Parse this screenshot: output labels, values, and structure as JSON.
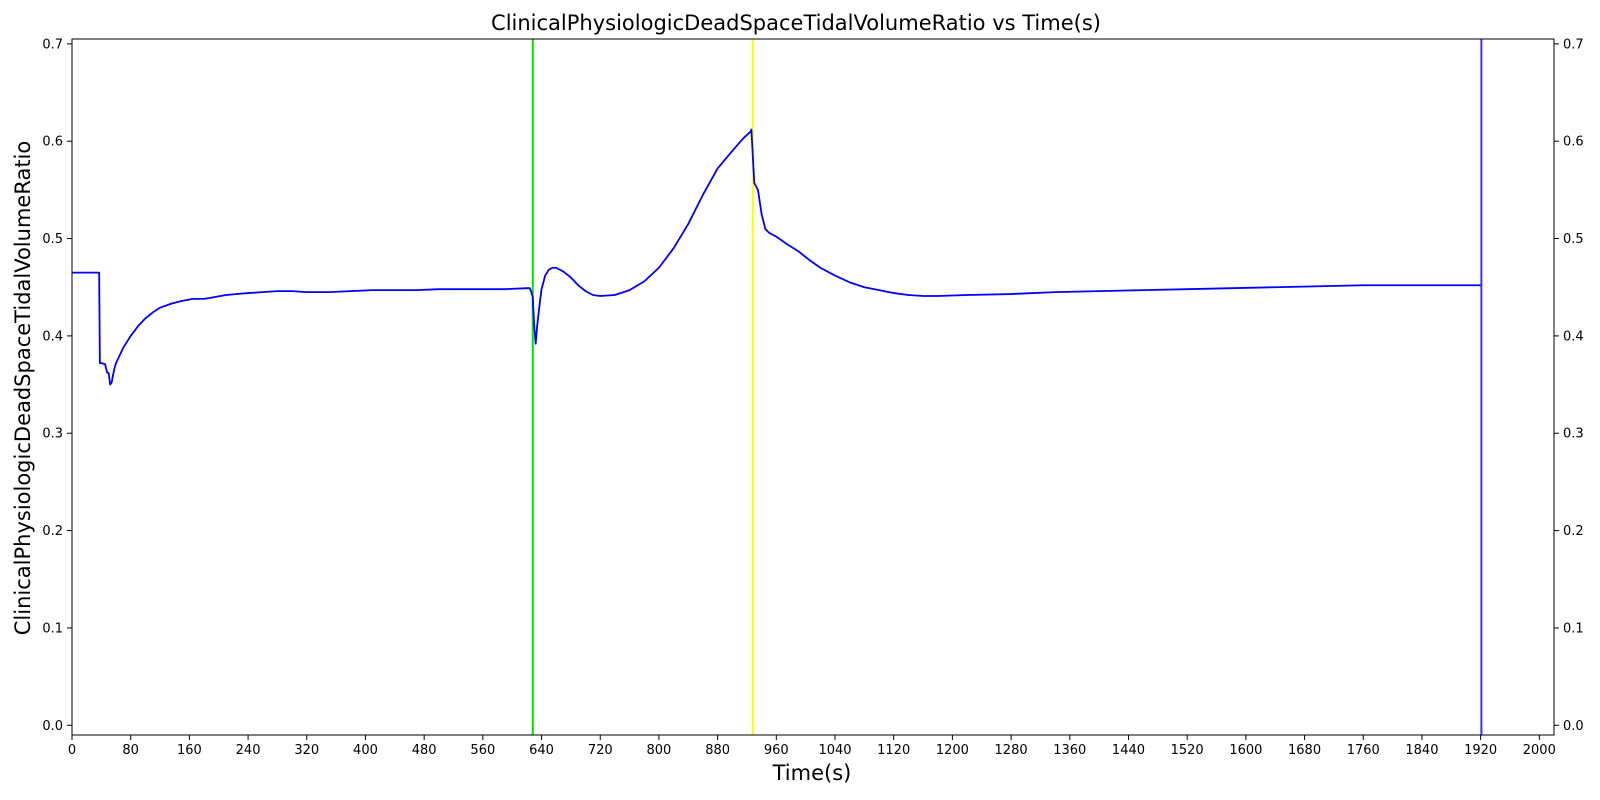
{
  "chart_data": {
    "type": "line",
    "title": "ClinicalPhysiologicDeadSpaceTidalVolumeRatio vs Time(s)",
    "xlabel": "Time(s)",
    "ylabel": "ClinicalPhysiologicDeadSpaceTidalVolumeRatio",
    "xlim": [
      0,
      2020
    ],
    "ylim": [
      -0.01,
      0.705
    ],
    "x_ticks": [
      0,
      80,
      160,
      240,
      320,
      400,
      480,
      560,
      640,
      720,
      800,
      880,
      960,
      1040,
      1120,
      1200,
      1280,
      1360,
      1440,
      1520,
      1600,
      1680,
      1760,
      1840,
      1920,
      2000
    ],
    "y_ticks": [
      0.0,
      0.1,
      0.2,
      0.3,
      0.4,
      0.5,
      0.6,
      0.7
    ],
    "y_tick_labels": [
      "0.0",
      "0.1",
      "0.2",
      "0.3",
      "0.4",
      "0.5",
      "0.6",
      "0.7"
    ],
    "right_axis_mirrors_left": true,
    "grid": false,
    "series": [
      {
        "color": "#0000ff",
        "x": [
          0,
          37,
          38,
          40,
          45,
          48,
          50,
          52,
          54,
          56,
          58,
          60,
          65,
          70,
          80,
          90,
          100,
          110,
          120,
          135,
          150,
          165,
          180,
          195,
          210,
          225,
          240,
          260,
          280,
          300,
          320,
          350,
          380,
          410,
          440,
          470,
          500,
          530,
          560,
          590,
          620,
          624,
          626,
          628,
          630,
          632,
          634,
          637,
          640,
          645,
          650,
          655,
          660,
          670,
          680,
          690,
          700,
          710,
          720,
          740,
          760,
          780,
          800,
          820,
          840,
          860,
          880,
          900,
          915,
          925,
          926,
          930,
          935,
          940,
          945,
          950,
          960,
          975,
          990,
          1005,
          1020,
          1040,
          1060,
          1080,
          1100,
          1120,
          1140,
          1160,
          1180,
          1220,
          1280,
          1340,
          1400,
          1460,
          1520,
          1580,
          1640,
          1700,
          1760,
          1820,
          1880,
          1920
        ],
        "y": [
          0.465,
          0.465,
          0.372,
          0.372,
          0.371,
          0.362,
          0.362,
          0.35,
          0.352,
          0.36,
          0.367,
          0.372,
          0.38,
          0.388,
          0.4,
          0.41,
          0.418,
          0.424,
          0.429,
          0.433,
          0.436,
          0.438,
          0.438,
          0.44,
          0.442,
          0.443,
          0.444,
          0.445,
          0.446,
          0.446,
          0.445,
          0.445,
          0.446,
          0.447,
          0.447,
          0.447,
          0.448,
          0.448,
          0.448,
          0.448,
          0.449,
          0.449,
          0.445,
          0.44,
          0.41,
          0.392,
          0.41,
          0.43,
          0.448,
          0.462,
          0.468,
          0.47,
          0.47,
          0.466,
          0.46,
          0.452,
          0.446,
          0.442,
          0.441,
          0.442,
          0.447,
          0.456,
          0.47,
          0.49,
          0.515,
          0.545,
          0.572,
          0.59,
          0.603,
          0.61,
          0.612,
          0.557,
          0.55,
          0.525,
          0.51,
          0.506,
          0.502,
          0.494,
          0.487,
          0.478,
          0.47,
          0.462,
          0.455,
          0.45,
          0.447,
          0.444,
          0.442,
          0.441,
          0.441,
          0.442,
          0.443,
          0.445,
          0.446,
          0.447,
          0.448,
          0.449,
          0.45,
          0.451,
          0.452,
          0.452,
          0.452,
          0.452
        ]
      }
    ],
    "vlines": [
      {
        "x": 628,
        "color": "#00e000"
      },
      {
        "x": 928,
        "color": "#ffff00"
      },
      {
        "x": 1921,
        "color": "#3333ff"
      }
    ]
  }
}
